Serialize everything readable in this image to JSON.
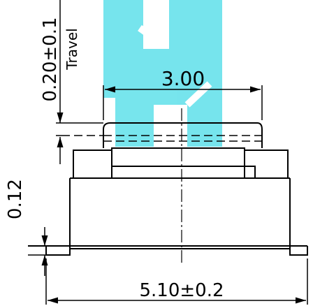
{
  "drawing": {
    "watermark_color": "#5fe0ea",
    "line_color": "#000000",
    "dimensions": {
      "stroke_width": "3.00",
      "total_width": "5.10±0.2",
      "travel_value": "0.20±0.1",
      "travel_label": "Travel",
      "base_thickness": "0.12"
    }
  }
}
